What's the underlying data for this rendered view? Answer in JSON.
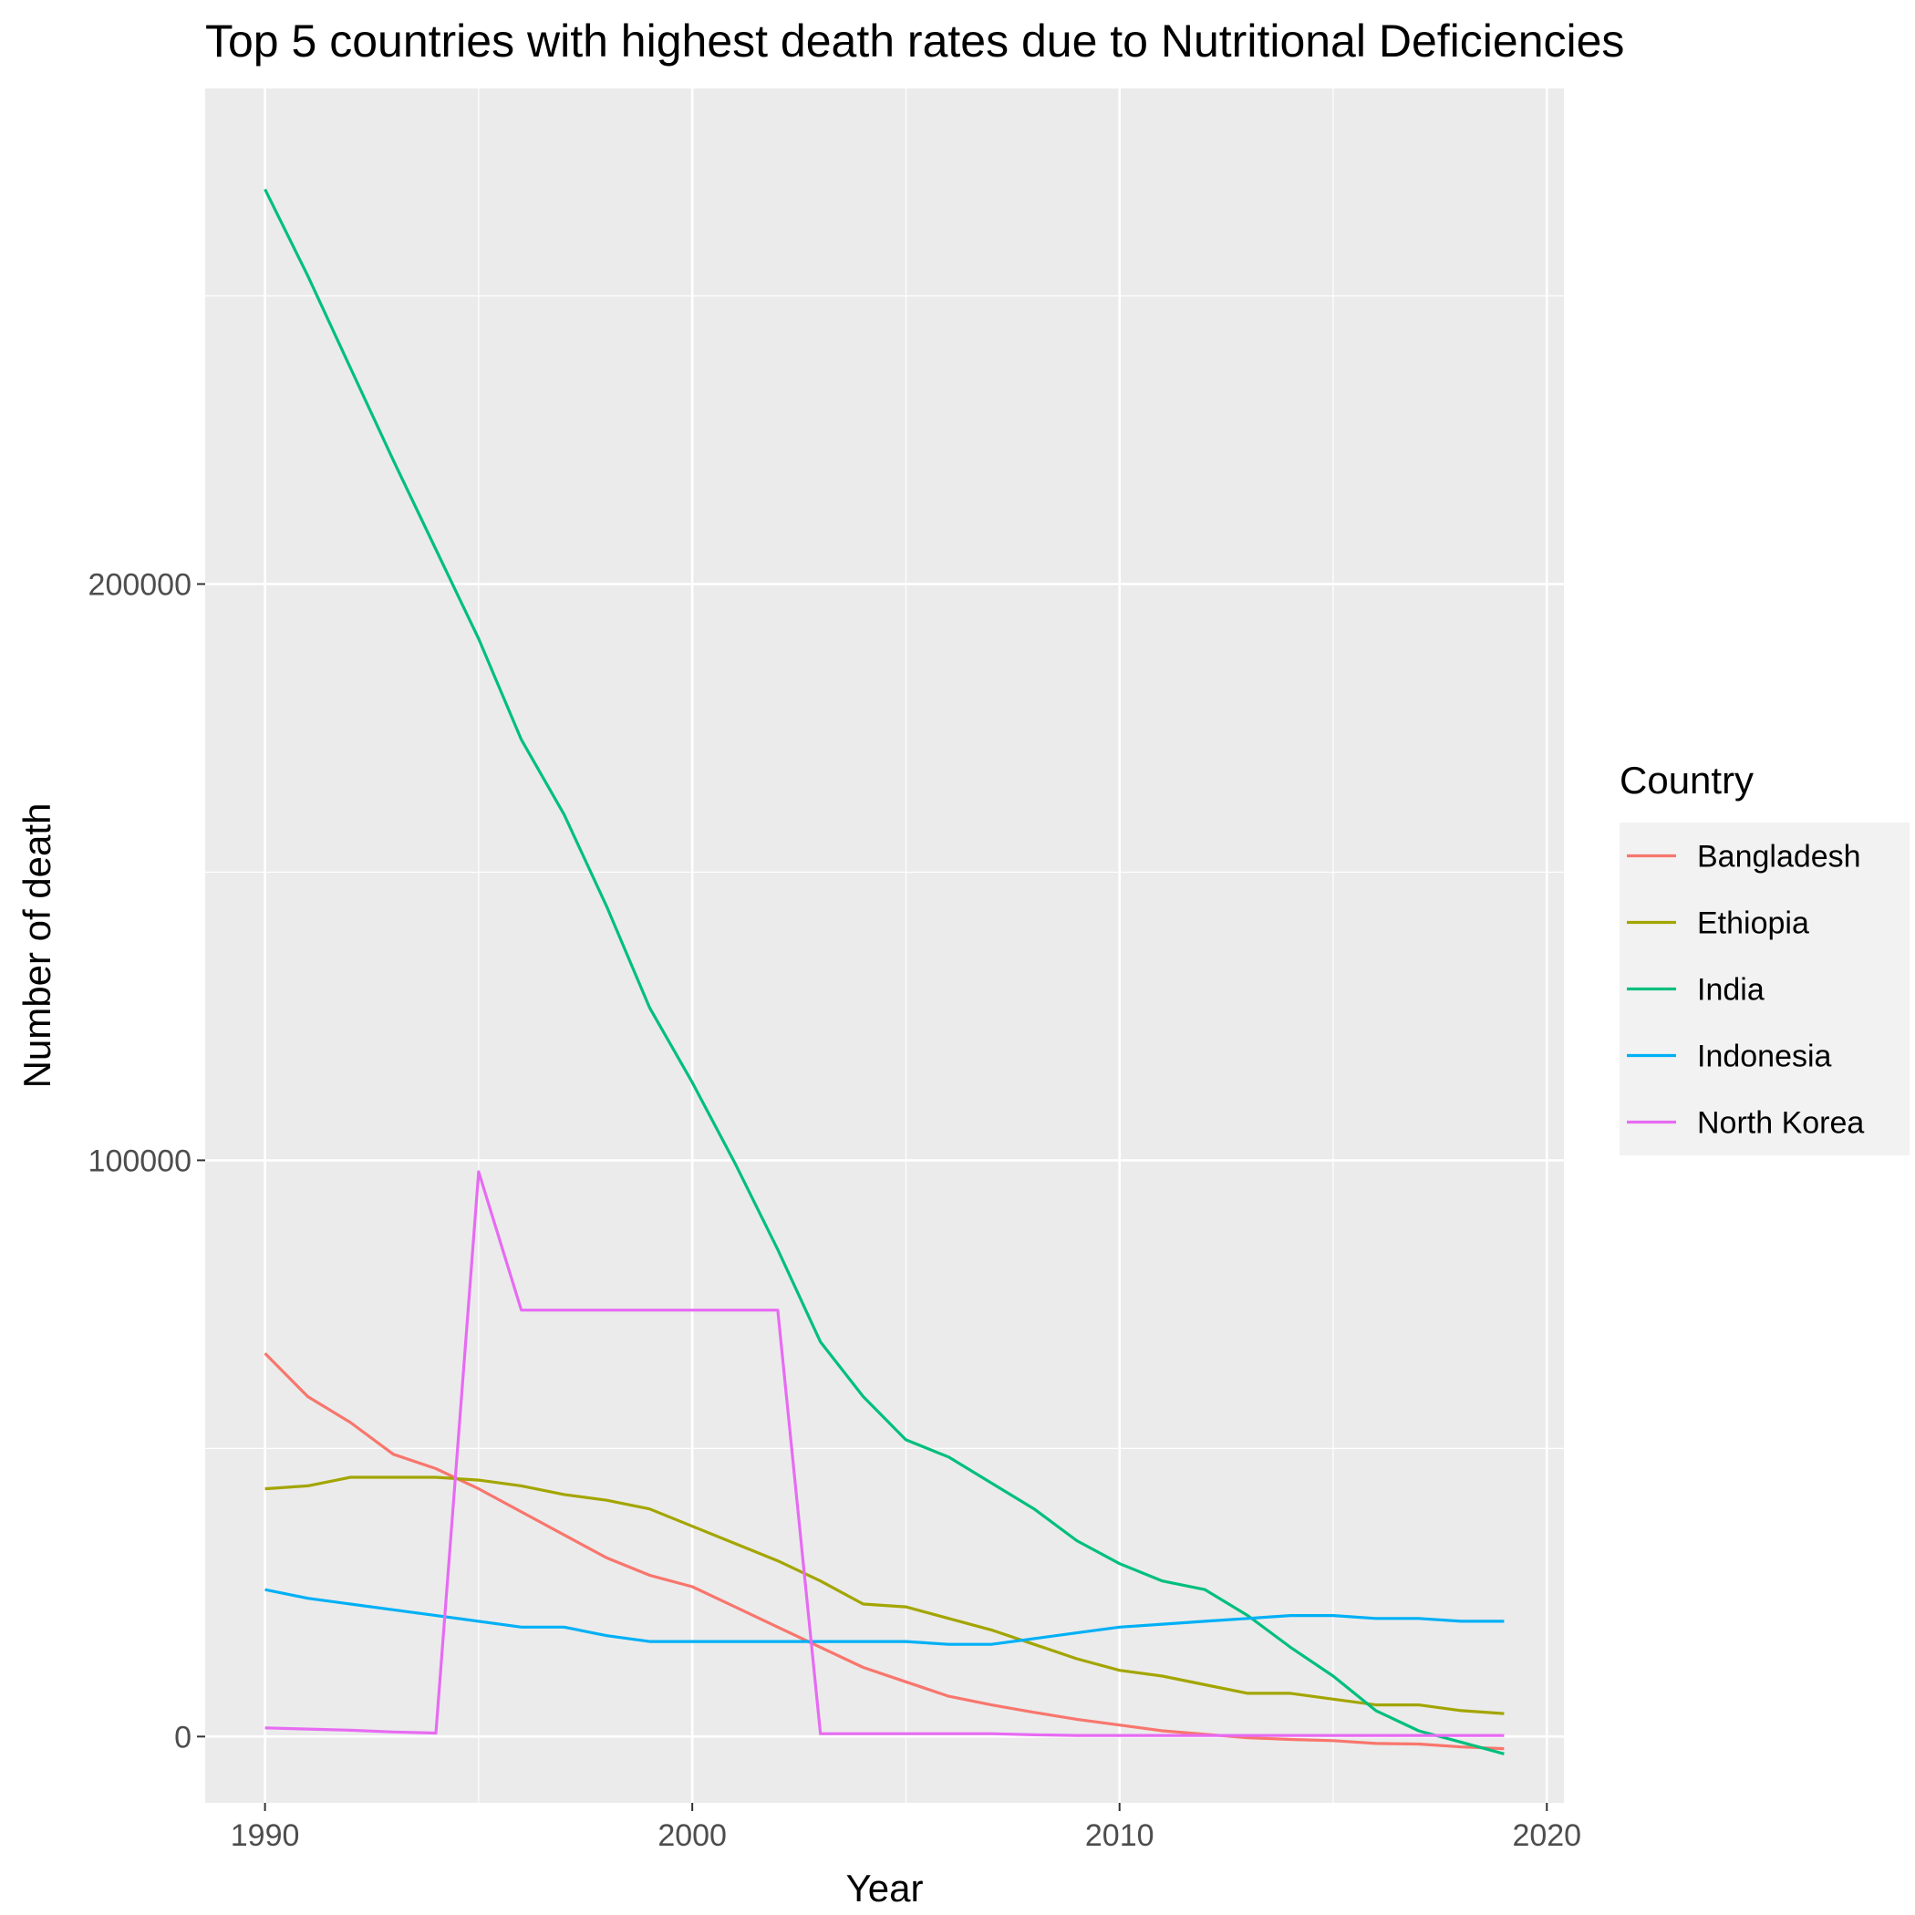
{
  "chart_data": {
    "type": "line",
    "title": "Top 5 countries with highest death rates due to Nutritional Deficiencies",
    "xlabel": "Year",
    "ylabel": "Number of death",
    "x": [
      1990,
      1991,
      1992,
      1993,
      1994,
      1995,
      1996,
      1997,
      1998,
      1999,
      2000,
      2001,
      2002,
      2003,
      2004,
      2005,
      2006,
      2007,
      2008,
      2009,
      2010,
      2011,
      2012,
      2013,
      2014,
      2015,
      2016,
      2017,
      2018,
      2019
    ],
    "xlim": [
      1988.6,
      2020.4
    ],
    "ylim": [
      -11500,
      286000
    ],
    "xticks": [
      1990,
      2000,
      2010,
      2020
    ],
    "yticks": [
      0,
      100000,
      200000
    ],
    "grid": true,
    "legend": {
      "title": "Country",
      "position": "right"
    },
    "series": [
      {
        "name": "Bangladesh",
        "color": "#F8766D",
        "values": [
          66500,
          59000,
          54500,
          49000,
          46500,
          43000,
          39000,
          35000,
          31000,
          28000,
          26000,
          22500,
          19000,
          15500,
          12000,
          9500,
          7000,
          5500,
          4200,
          3000,
          2000,
          1000,
          400,
          -200,
          -500,
          -700,
          -1200,
          -1300,
          -1800,
          -2100
        ]
      },
      {
        "name": "Ethiopia",
        "color": "#A3A500",
        "values": [
          43000,
          43500,
          45000,
          45000,
          45000,
          44500,
          43500,
          42000,
          41000,
          39500,
          36500,
          33500,
          30500,
          27000,
          23000,
          22500,
          20500,
          18500,
          16000,
          13500,
          11500,
          10500,
          9000,
          7500,
          7500,
          6500,
          5500,
          5500,
          4500,
          4000
        ]
      },
      {
        "name": "India",
        "color": "#00BF7D",
        "values": [
          268500,
          253500,
          237500,
          221500,
          206000,
          190500,
          173000,
          160000,
          144000,
          126500,
          113500,
          99500,
          84500,
          68500,
          59000,
          51500,
          48500,
          44000,
          39500,
          34000,
          30000,
          27000,
          25500,
          21000,
          15500,
          10500,
          4500,
          1000,
          -1000,
          -3000
        ]
      },
      {
        "name": "Indonesia",
        "color": "#00B0F6",
        "values": [
          25500,
          24000,
          23000,
          22000,
          21000,
          20000,
          19000,
          19000,
          17500,
          16500,
          16500,
          16500,
          16500,
          16500,
          16500,
          16500,
          16000,
          16000,
          17000,
          18000,
          19000,
          19500,
          20000,
          20500,
          21000,
          21000,
          20500,
          20500,
          20000,
          20000
        ]
      },
      {
        "name": "North Korea",
        "color": "#E76BF3",
        "values": [
          1500,
          1300,
          1100,
          800,
          600,
          98000,
          74000,
          74000,
          74000,
          74000,
          74000,
          74000,
          74000,
          500,
          500,
          500,
          500,
          500,
          300,
          200,
          200,
          200,
          200,
          200,
          200,
          200,
          200,
          200,
          200,
          200
        ]
      }
    ]
  }
}
